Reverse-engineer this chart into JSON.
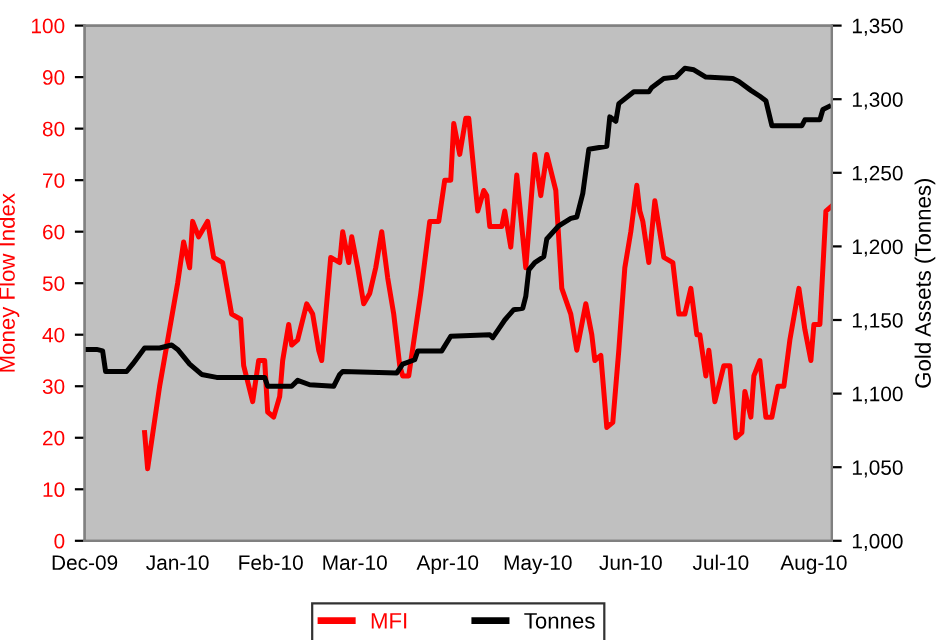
{
  "chart_data": {
    "type": "line",
    "ylabel": "Money Flow Index",
    "y2label": "Gold Assets (Tonnes)",
    "xlim": [
      "2009-12-01",
      "2010-08-07"
    ],
    "xticks": [
      {
        "value": "2009-12-01",
        "label": "Dec-09"
      },
      {
        "value": "2010-01-01",
        "label": "Jan-10"
      },
      {
        "value": "2010-02-01",
        "label": "Feb-10"
      },
      {
        "value": "2010-03-01",
        "label": "Mar-10"
      },
      {
        "value": "2010-04-01",
        "label": "Apr-10"
      },
      {
        "value": "2010-05-01",
        "label": "May-10"
      },
      {
        "value": "2010-06-01",
        "label": "Jun-10"
      },
      {
        "value": "2010-07-01",
        "label": "Jul-10"
      },
      {
        "value": "2010-08-01",
        "label": "Aug-10"
      }
    ],
    "ylim": [
      0,
      100
    ],
    "yticks": [
      0,
      10,
      20,
      30,
      40,
      50,
      60,
      70,
      80,
      90,
      100
    ],
    "y2lim": [
      1000,
      1350
    ],
    "y2ticks": [
      {
        "value": 1000,
        "label": "1,000"
      },
      {
        "value": 1050,
        "label": "1,050"
      },
      {
        "value": 1100,
        "label": "1,100"
      },
      {
        "value": 1150,
        "label": "1,150"
      },
      {
        "value": 1200,
        "label": "1,200"
      },
      {
        "value": 1250,
        "label": "1,250"
      },
      {
        "value": 1300,
        "label": "1,300"
      },
      {
        "value": 1350,
        "label": "1,350"
      }
    ],
    "grid": false,
    "legend": "bottom",
    "series": [
      {
        "name": "MFI",
        "color": "#ff0000",
        "x": [
          "2009-12-21",
          "2009-12-22",
          "2009-12-26",
          "2010-01-01",
          "2010-01-03",
          "2010-01-05",
          "2010-01-06",
          "2010-01-08",
          "2010-01-11",
          "2010-01-13",
          "2010-01-16",
          "2010-01-19",
          "2010-01-22",
          "2010-01-23",
          "2010-01-26",
          "2010-01-28",
          "2010-01-30",
          "2010-01-31",
          "2010-02-02",
          "2010-02-04",
          "2010-02-05",
          "2010-02-07",
          "2010-02-08",
          "2010-02-10",
          "2010-02-13",
          "2010-02-15",
          "2010-02-17",
          "2010-02-18",
          "2010-02-21",
          "2010-02-24",
          "2010-02-25",
          "2010-02-27",
          "2010-02-28",
          "2010-03-02",
          "2010-03-04",
          "2010-03-06",
          "2010-03-08",
          "2010-03-10",
          "2010-03-12",
          "2010-03-14",
          "2010-03-16",
          "2010-03-17",
          "2010-03-19",
          "2010-03-23",
          "2010-03-26",
          "2010-03-29",
          "2010-03-31",
          "2010-04-02",
          "2010-04-03",
          "2010-04-05",
          "2010-04-07",
          "2010-04-08",
          "2010-04-10",
          "2010-04-11",
          "2010-04-13",
          "2010-04-14",
          "2010-04-15",
          "2010-04-19",
          "2010-04-20",
          "2010-04-22",
          "2010-04-24",
          "2010-04-27",
          "2010-04-30",
          "2010-05-02",
          "2010-05-04",
          "2010-05-07",
          "2010-05-09",
          "2010-05-12",
          "2010-05-14",
          "2010-05-17",
          "2010-05-19",
          "2010-05-20",
          "2010-05-22",
          "2010-05-24",
          "2010-05-26",
          "2010-05-28",
          "2010-05-30",
          "2010-06-01",
          "2010-06-03",
          "2010-06-04",
          "2010-06-05",
          "2010-06-07",
          "2010-06-09",
          "2010-06-12",
          "2010-06-15",
          "2010-06-17",
          "2010-06-19",
          "2010-06-21",
          "2010-06-23",
          "2010-06-24",
          "2010-06-26",
          "2010-06-27",
          "2010-06-29",
          "2010-07-02",
          "2010-07-04",
          "2010-07-06",
          "2010-07-08",
          "2010-07-09",
          "2010-07-11",
          "2010-07-12",
          "2010-07-14",
          "2010-07-16",
          "2010-07-18",
          "2010-07-20",
          "2010-07-22",
          "2010-07-24",
          "2010-07-27",
          "2010-07-29",
          "2010-07-31",
          "2010-08-01",
          "2010-08-03",
          "2010-08-05",
          "2010-08-07"
        ],
        "values": [
          21,
          14,
          30,
          50,
          58,
          53,
          62,
          59,
          62,
          55,
          54,
          44,
          43,
          34,
          27,
          35,
          35,
          25,
          24,
          28,
          35,
          42,
          38,
          39,
          46,
          44,
          37,
          35,
          55,
          54,
          60,
          54,
          59,
          53,
          46,
          48,
          53,
          60,
          51,
          44,
          34,
          32,
          32,
          48,
          62,
          62,
          70,
          70,
          81,
          75,
          82,
          82,
          70,
          64,
          68,
          67,
          61,
          61,
          64,
          57,
          71,
          53,
          75,
          67,
          75,
          68,
          49,
          44,
          37,
          46,
          40,
          35,
          36,
          22,
          23,
          37,
          53,
          60,
          69,
          64,
          62,
          54,
          66,
          55,
          54,
          44,
          44,
          49,
          40,
          40,
          32,
          37,
          27,
          34,
          34,
          20,
          21,
          29,
          24,
          32,
          35,
          24,
          24,
          30,
          30,
          39,
          49,
          41,
          35,
          42,
          42,
          64,
          65
        ]
      },
      {
        "name": "Tonnes",
        "color": "#000000",
        "axis": "y2",
        "x": [
          "2009-12-01",
          "2009-12-05",
          "2009-12-07",
          "2009-12-08",
          "2009-12-15",
          "2009-12-17",
          "2009-12-21",
          "2009-12-26",
          "2009-12-30",
          "2010-01-01",
          "2010-01-05",
          "2010-01-09",
          "2010-01-14",
          "2010-01-30",
          "2010-01-31",
          "2010-02-08",
          "2010-02-10",
          "2010-02-14",
          "2010-02-22",
          "2010-02-24",
          "2010-02-25",
          "2010-03-15",
          "2010-03-17",
          "2010-03-21",
          "2010-03-22",
          "2010-03-30",
          "2010-04-02",
          "2010-04-15",
          "2010-04-16",
          "2010-04-18",
          "2010-04-20",
          "2010-04-23",
          "2010-04-26",
          "2010-04-27",
          "2010-04-28",
          "2010-04-30",
          "2010-05-03",
          "2010-05-04",
          "2010-05-08",
          "2010-05-12",
          "2010-05-14",
          "2010-05-16",
          "2010-05-18",
          "2010-05-24",
          "2010-05-25",
          "2010-05-27",
          "2010-05-28",
          "2010-06-02",
          "2010-06-07",
          "2010-06-08",
          "2010-06-12",
          "2010-06-16",
          "2010-06-19",
          "2010-06-22",
          "2010-06-26",
          "2010-07-05",
          "2010-07-07",
          "2010-07-11",
          "2010-07-14",
          "2010-07-16",
          "2010-07-18",
          "2010-07-28",
          "2010-07-29",
          "2010-08-03",
          "2010-08-04",
          "2010-08-06"
        ],
        "values": [
          1130,
          1130,
          1129,
          1115,
          1115,
          1120,
          1131,
          1131,
          1133,
          1130,
          1120,
          1113,
          1111,
          1111,
          1105,
          1105,
          1109,
          1106,
          1105,
          1113,
          1115,
          1114,
          1120,
          1123,
          1129,
          1129,
          1139,
          1140,
          1138,
          1144,
          1150,
          1157,
          1158,
          1166,
          1184,
          1189,
          1193,
          1205,
          1214,
          1219,
          1220,
          1236,
          1266,
          1268,
          1288,
          1285,
          1297,
          1305,
          1305,
          1308,
          1314,
          1315,
          1321,
          1320,
          1315,
          1314,
          1312,
          1306,
          1302,
          1299,
          1282,
          1282,
          1286,
          1286,
          1293,
          1295
        ]
      }
    ]
  }
}
